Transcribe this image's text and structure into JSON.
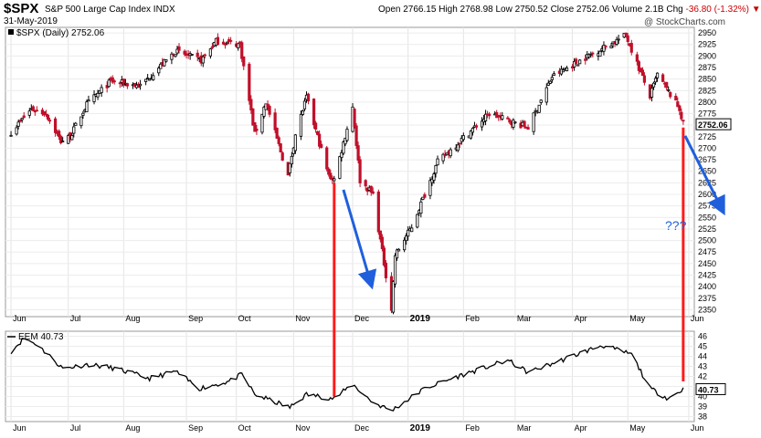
{
  "header": {
    "symbol": "$SPX",
    "name": "S&P 500 Large Cap Index",
    "exchange": "INDX",
    "date": "31-May-2019",
    "open_label": "Open",
    "open": "2766.15",
    "high_label": "High",
    "high": "2768.98",
    "low_label": "Low",
    "low": "2750.52",
    "close_label": "Close",
    "close": "2752.06",
    "volume_label": "Volume",
    "volume": "2.1B",
    "chg_label": "Chg",
    "chg": "-36.80 (-1.32%)",
    "credit": "@ StockCharts.com"
  },
  "chart_data": [
    {
      "type": "candlestick",
      "legend": "$SPX (Daily) 2752.06",
      "last_value": "2752.06",
      "ylim": [
        2335,
        2962
      ],
      "y_ticks": [
        2350,
        2375,
        2400,
        2425,
        2450,
        2475,
        2500,
        2525,
        2550,
        2575,
        2600,
        2625,
        2650,
        2675,
        2700,
        2725,
        2750,
        2775,
        2800,
        2825,
        2850,
        2875,
        2900,
        2925,
        2950
      ],
      "x_ticks": [
        "Jun",
        "Jul",
        "Aug",
        "Sep",
        "Oct",
        "Nov",
        "Dec",
        "2019",
        "Feb",
        "Mar",
        "Apr",
        "May",
        "Jun"
      ],
      "anchors": [
        [
          "2018-06-01",
          2735
        ],
        [
          "2018-06-12",
          2785
        ],
        [
          "2018-06-20",
          2775
        ],
        [
          "2018-06-28",
          2715
        ],
        [
          "2018-07-03",
          2725
        ],
        [
          "2018-07-12",
          2795
        ],
        [
          "2018-07-25",
          2845
        ],
        [
          "2018-08-10",
          2835
        ],
        [
          "2018-08-29",
          2910
        ],
        [
          "2018-09-12",
          2890
        ],
        [
          "2018-09-20",
          2932
        ],
        [
          "2018-10-03",
          2925
        ],
        [
          "2018-10-11",
          2730
        ],
        [
          "2018-10-17",
          2800
        ],
        [
          "2018-10-29",
          2640
        ],
        [
          "2018-11-02",
          2730
        ],
        [
          "2018-11-08",
          2810
        ],
        [
          "2018-11-20",
          2640
        ],
        [
          "2018-11-23",
          2633
        ],
        [
          "2018-12-03",
          2790
        ],
        [
          "2018-12-07",
          2630
        ],
        [
          "2018-12-14",
          2600
        ],
        [
          "2018-12-24",
          2351
        ],
        [
          "2018-12-26",
          2468
        ],
        [
          "2019-01-04",
          2530
        ],
        [
          "2019-01-18",
          2670
        ],
        [
          "2019-02-15",
          2775
        ],
        [
          "2019-03-08",
          2745
        ],
        [
          "2019-03-21",
          2855
        ],
        [
          "2019-04-05",
          2890
        ],
        [
          "2019-04-30",
          2945
        ],
        [
          "2019-05-13",
          2812
        ],
        [
          "2019-05-17",
          2860
        ],
        [
          "2019-05-29",
          2785
        ],
        [
          "2019-05-31",
          2752
        ]
      ],
      "annotation": "???",
      "colors": {
        "up": "#000000",
        "down": "#c0102a",
        "arrow": "#1f5fdc",
        "marker": "#ff1a1a"
      }
    },
    {
      "type": "line",
      "series_name": "EEM",
      "legend": "EEM 40.73",
      "last_value": "40.73",
      "ylim": [
        37.5,
        46.5
      ],
      "y_ticks": [
        38,
        39,
        40,
        41,
        42,
        43,
        44,
        45,
        46
      ],
      "x_ticks": [
        "Jun",
        "Jul",
        "Aug",
        "Sep",
        "Oct",
        "Nov",
        "Dec",
        "2019",
        "Feb",
        "Mar",
        "Apr",
        "May",
        "Jun"
      ],
      "anchors": [
        [
          "2018-06-01",
          44.5
        ],
        [
          "2018-06-08",
          45.8
        ],
        [
          "2018-06-15",
          45.2
        ],
        [
          "2018-06-29",
          42.8
        ],
        [
          "2018-07-13",
          43.2
        ],
        [
          "2018-07-27",
          42.8
        ],
        [
          "2018-08-15",
          41.8
        ],
        [
          "2018-08-29",
          42.5
        ],
        [
          "2018-09-11",
          40.8
        ],
        [
          "2018-09-27",
          41.5
        ],
        [
          "2018-10-04",
          42.2
        ],
        [
          "2018-10-11",
          40.2
        ],
        [
          "2018-10-30",
          38.9
        ],
        [
          "2018-11-08",
          40.2
        ],
        [
          "2018-11-23",
          39.8
        ],
        [
          "2018-12-03",
          41.2
        ],
        [
          "2018-12-14",
          39.4
        ],
        [
          "2018-12-24",
          38.6
        ],
        [
          "2019-01-11",
          40.8
        ],
        [
          "2019-02-01",
          42.2
        ],
        [
          "2019-02-25",
          43.6
        ],
        [
          "2019-03-08",
          42.4
        ],
        [
          "2019-03-20",
          43.2
        ],
        [
          "2019-04-05",
          44.3
        ],
        [
          "2019-04-17",
          45.1
        ],
        [
          "2019-05-03",
          44.2
        ],
        [
          "2019-05-13",
          40.8
        ],
        [
          "2019-05-23",
          39.8
        ],
        [
          "2019-05-31",
          40.73
        ]
      ],
      "colors": {
        "line": "#000000",
        "marker": "#ff1a1a"
      }
    }
  ]
}
